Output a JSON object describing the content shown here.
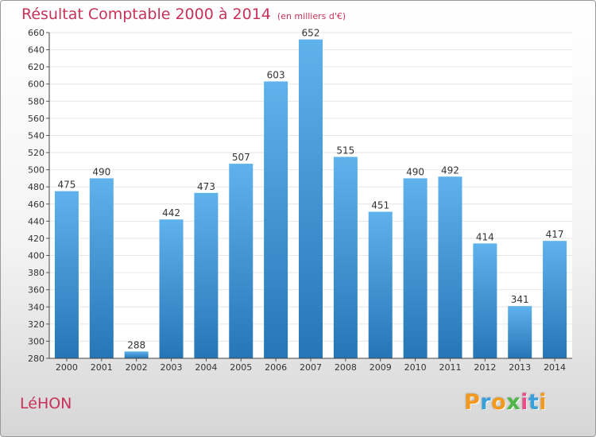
{
  "title": "Résultat Comptable 2000 à 2014",
  "subtitle": "(en milliers d'€)",
  "commune": "LéHON",
  "logo": {
    "letters": [
      "P",
      "r",
      "o",
      "x",
      "i",
      "t",
      "i"
    ],
    "colors": [
      "#f39a1e",
      "#3aa0dc",
      "#f39a1e",
      "#4db848",
      "#e94e8a",
      "#3aa0dc",
      "#f39a1e"
    ]
  },
  "colors": {
    "bar_top": "#5fb2ec",
    "bar_bottom": "#2576b6",
    "title": "#c8325a",
    "grid": "#e6e6e6"
  },
  "chart_data": {
    "type": "bar",
    "title": "Résultat Comptable 2000 à 2014",
    "xlabel": "",
    "ylabel": "",
    "categories": [
      "2000",
      "2001",
      "2002",
      "2003",
      "2004",
      "2005",
      "2006",
      "2007",
      "2008",
      "2009",
      "2010",
      "2011",
      "2012",
      "2013",
      "2014"
    ],
    "values": [
      475,
      490,
      288,
      442,
      473,
      507,
      603,
      652,
      515,
      451,
      490,
      492,
      414,
      341,
      417
    ],
    "ylim": [
      280,
      660
    ],
    "ytick_step": 20,
    "grid": true
  }
}
